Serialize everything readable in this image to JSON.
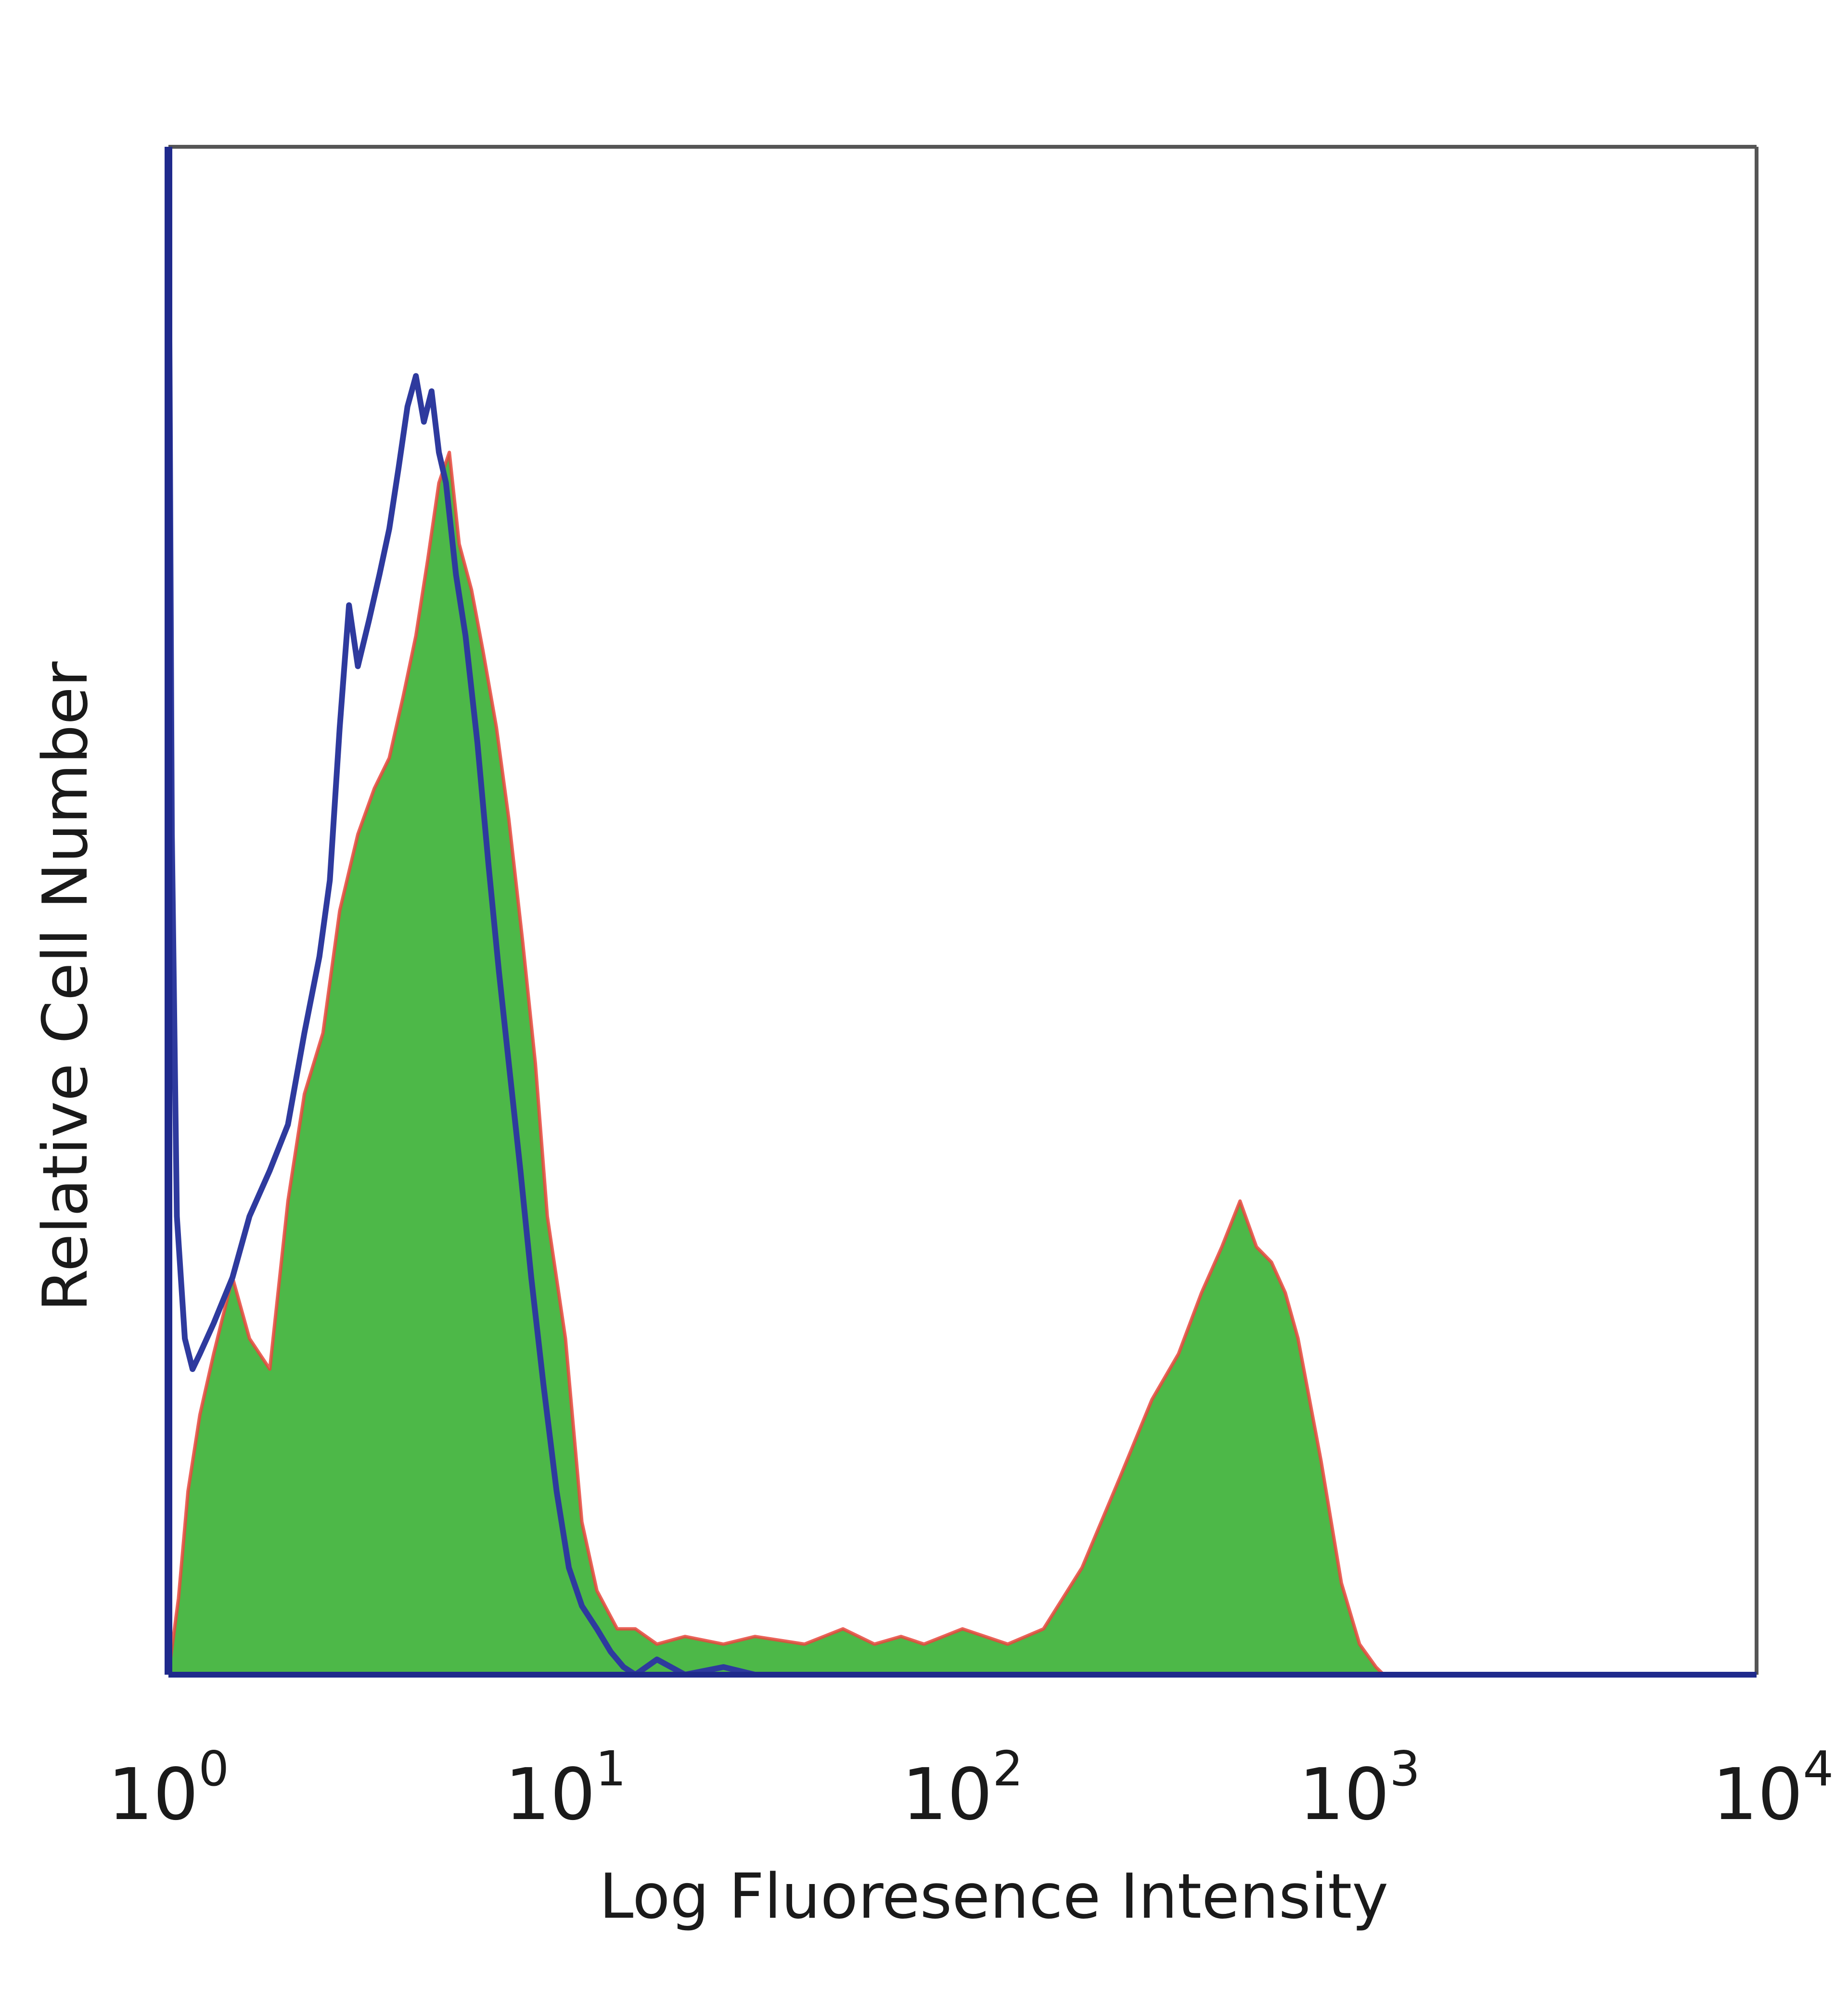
{
  "chart_data": {
    "type": "area",
    "title": "",
    "xlabel": "Log Fluoresence Intensity",
    "ylabel": "Relative Cell Number",
    "x_scale": "log",
    "xlim": [
      1,
      10000
    ],
    "ylim": [
      0,
      1
    ],
    "grid": false,
    "legend": "none",
    "x_ticks": [
      {
        "value": 1,
        "base": "10",
        "exp": "0"
      },
      {
        "value": 10,
        "base": "10",
        "exp": "1"
      },
      {
        "value": 100,
        "base": "10",
        "exp": "2"
      },
      {
        "value": 1000,
        "base": "10",
        "exp": "3"
      },
      {
        "value": 10000,
        "base": "10",
        "exp": "4"
      }
    ],
    "series": [
      {
        "style": "filled",
        "color": "#4db848",
        "edge_color": "#e8473d",
        "x": [
          1.0,
          1.06,
          1.12,
          1.2,
          1.3,
          1.45,
          1.6,
          1.8,
          2.0,
          2.2,
          2.45,
          2.7,
          3.0,
          3.3,
          3.6,
          3.9,
          4.2,
          4.5,
          4.8,
          5.1,
          5.4,
          5.8,
          6.2,
          6.7,
          7.2,
          7.8,
          8.4,
          9.0,
          10.0,
          11.0,
          12.0,
          13.5,
          15.0,
          17,
          20,
          25,
          30,
          40,
          50,
          60,
          70,
          80,
          100,
          130,
          160,
          200,
          250,
          300,
          350,
          400,
          450,
          500,
          550,
          600,
          650,
          700,
          800,
          900,
          1000,
          1100,
          1150,
          1300,
          2000,
          5000,
          10000
        ],
        "y": [
          0.0,
          0.05,
          0.12,
          0.17,
          0.21,
          0.26,
          0.22,
          0.2,
          0.31,
          0.38,
          0.42,
          0.5,
          0.55,
          0.58,
          0.6,
          0.64,
          0.68,
          0.73,
          0.78,
          0.8,
          0.74,
          0.71,
          0.67,
          0.62,
          0.56,
          0.48,
          0.4,
          0.3,
          0.22,
          0.1,
          0.055,
          0.03,
          0.03,
          0.02,
          0.025,
          0.02,
          0.025,
          0.02,
          0.03,
          0.02,
          0.025,
          0.02,
          0.03,
          0.02,
          0.03,
          0.07,
          0.13,
          0.18,
          0.21,
          0.25,
          0.28,
          0.31,
          0.28,
          0.27,
          0.25,
          0.22,
          0.14,
          0.06,
          0.02,
          0.005,
          0.0,
          0.0,
          0.0,
          0.0,
          0.0
        ]
      },
      {
        "style": "outline",
        "color": "#2e3a9e",
        "x": [
          1.0,
          1.02,
          1.05,
          1.1,
          1.15,
          1.2,
          1.3,
          1.45,
          1.6,
          1.8,
          2.0,
          2.2,
          2.4,
          2.55,
          2.7,
          2.85,
          3.0,
          3.2,
          3.4,
          3.6,
          3.8,
          4.0,
          4.2,
          4.4,
          4.6,
          4.8,
          5.0,
          5.3,
          5.6,
          6.0,
          6.4,
          6.8,
          7.2,
          7.7,
          8.2,
          8.8,
          9.5,
          10.2,
          11.0,
          12.0,
          13.0,
          14.0,
          15.0,
          17.0,
          20.0,
          25,
          30,
          40,
          100,
          1000,
          10000
        ],
        "y": [
          1.0,
          0.55,
          0.3,
          0.22,
          0.2,
          0.21,
          0.23,
          0.26,
          0.3,
          0.33,
          0.36,
          0.42,
          0.47,
          0.52,
          0.62,
          0.7,
          0.66,
          0.69,
          0.72,
          0.75,
          0.79,
          0.83,
          0.85,
          0.82,
          0.84,
          0.8,
          0.78,
          0.72,
          0.68,
          0.61,
          0.53,
          0.46,
          0.4,
          0.33,
          0.26,
          0.19,
          0.12,
          0.07,
          0.045,
          0.03,
          0.015,
          0.005,
          0.0,
          0.01,
          0.0,
          0.005,
          0.0,
          0.0,
          0.0,
          0.0,
          0.0
        ]
      }
    ]
  }
}
